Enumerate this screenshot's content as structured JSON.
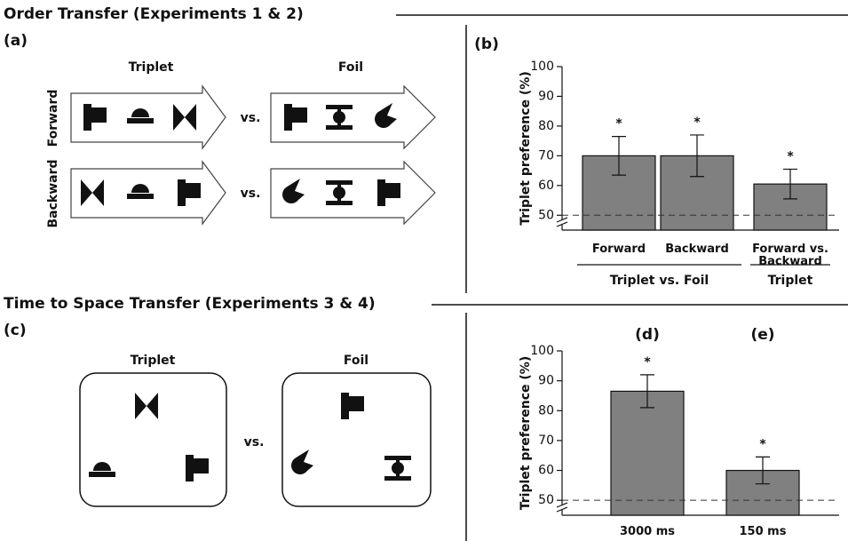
{
  "headings": [
    "Order Transfer (Experiments 1 & 2)",
    "Time to Space Transfer (Experiments 3 & 4)"
  ],
  "panel_a": {
    "label": "(a)",
    "columns": [
      "Triplet",
      "Foil"
    ],
    "rows": [
      "Forward",
      "Backward"
    ],
    "versus": "vs."
  },
  "panel_c": {
    "label": "(c)",
    "columns": [
      "Triplet",
      "Foil"
    ],
    "versus": "vs."
  },
  "chart_data": [
    {
      "type": "bar",
      "panel": "(b)",
      "ylabel": "Triplet preference (%)",
      "categories": [
        "Forward",
        "Backward",
        "Forward vs. Backward"
      ],
      "values": [
        70,
        70,
        60.5
      ],
      "errors": [
        6.5,
        7,
        5
      ],
      "annotations": [
        "*",
        "*",
        "*"
      ],
      "groups": [
        "Triplet vs. Foil",
        "Triplet"
      ],
      "color": "#808080",
      "ylim": [
        45,
        100
      ],
      "yticks": [
        50,
        60,
        70,
        80,
        90,
        100
      ],
      "reference_line": 50
    },
    {
      "type": "bar",
      "ylabel": "Triplet preference (%)",
      "categories": [
        "3000 ms",
        "150 ms"
      ],
      "panel_labels": [
        "(d)",
        "(e)"
      ],
      "values": [
        86.5,
        60
      ],
      "errors": [
        5.5,
        4.5
      ],
      "annotations": [
        "*",
        "*"
      ],
      "color": "#808080",
      "ylim": [
        45,
        100
      ],
      "yticks": [
        50,
        60,
        70,
        80,
        90,
        100
      ],
      "reference_line": 50
    }
  ]
}
